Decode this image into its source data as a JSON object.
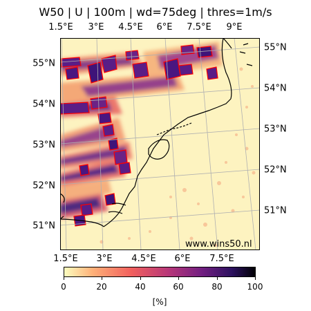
{
  "title": "W50 | U | 100m | wd=75deg | thres=1m/s",
  "lon_labels_top": [
    "1.5°E",
    "3°E",
    "4.5°E",
    "6°E",
    "7.5°E",
    "9°E"
  ],
  "lon_labels_bottom": [
    "1.5°E",
    "3°E",
    "4.5°E",
    "6°E",
    "7.5°E"
  ],
  "lat_labels_left": [
    "55°N",
    "54°N",
    "53°N",
    "52°N",
    "51°N"
  ],
  "lat_labels_right": [
    "55°N",
    "54°N",
    "53°N",
    "52°N",
    "51°N"
  ],
  "watermark": "www.wins50.nl",
  "colorbar": {
    "ticks": [
      "0",
      "20",
      "40",
      "60",
      "80",
      "100"
    ],
    "unit": "[%]",
    "colormap": "magma_r"
  },
  "colors": {
    "land_base": "#fdf3c0",
    "wake_core": "#5a1d86",
    "wind_farm_outline": "#ff0000",
    "coastline": "#000000",
    "grid": "#b0b0b0"
  }
}
